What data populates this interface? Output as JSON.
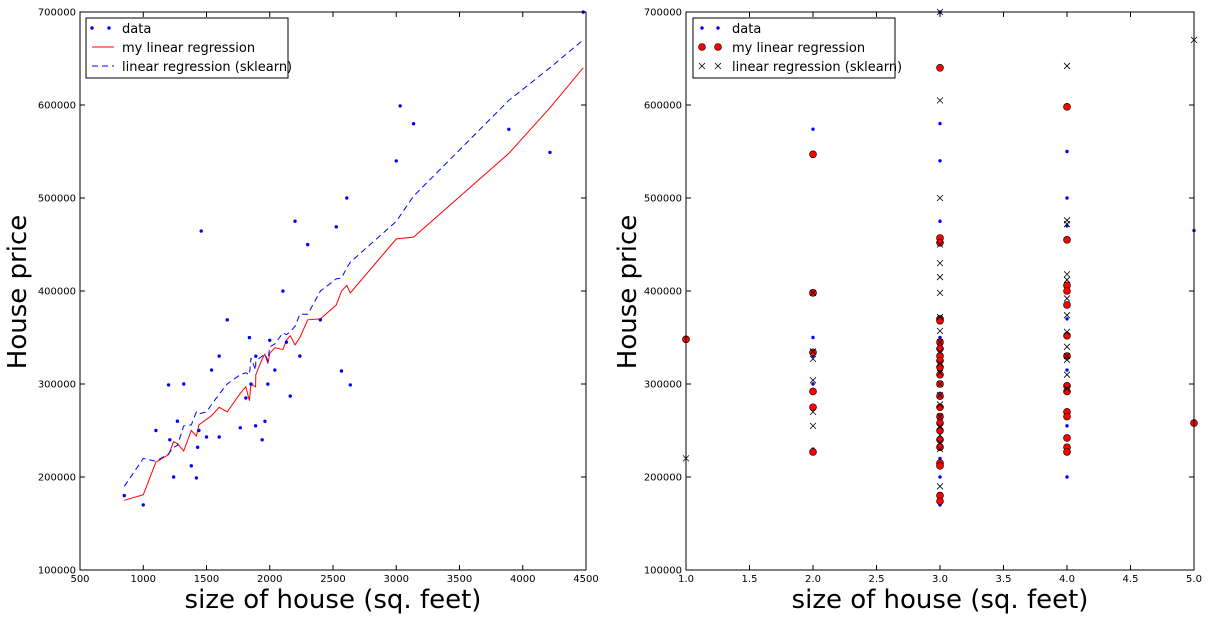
{
  "chart_data": [
    {
      "type": "scatter",
      "xlabel": "size of house (sq. feet)",
      "ylabel": "House price",
      "xlim": [
        500,
        4500
      ],
      "ylim": [
        100000,
        700000
      ],
      "xticks": [
        "500",
        "1000",
        "1500",
        "2000",
        "2500",
        "3000",
        "3500",
        "4000",
        "4500"
      ],
      "yticks": [
        "100000",
        "200000",
        "300000",
        "400000",
        "500000",
        "600000",
        "700000"
      ],
      "grid": false,
      "legend_position": "top-left",
      "series": [
        {
          "name": "data",
          "style": "points",
          "color": "#0000ff",
          "x": [
            850,
            1000,
            1100,
            1200,
            1210,
            1240,
            1270,
            1320,
            1380,
            1420,
            1430,
            1440,
            1458,
            1500,
            1540,
            1600,
            1600,
            1664,
            1767,
            1811,
            1839,
            1852,
            1888,
            1890,
            1940,
            1962,
            1985,
            2000,
            2040,
            2104,
            2132,
            2162,
            2200,
            2238,
            2300,
            2400,
            2526,
            2567,
            2609,
            2637,
            3000,
            3031,
            3137,
            3890,
            4215,
            4478
          ],
          "y": [
            180000,
            170000,
            250000,
            299000,
            240000,
            200000,
            260000,
            300000,
            212000,
            198999,
            232000,
            250000,
            464500,
            243000,
            315000,
            330000,
            243000,
            369000,
            252900,
            285000,
            349900,
            299900,
            255000,
            329900,
            240000,
            259900,
            299900,
            347000,
            315000,
            399900,
            345000,
            287000,
            475000,
            329999,
            449900,
            369000,
            469000,
            314000,
            499998,
            299000,
            539900,
            599000,
            579900,
            573900,
            549000,
            699900
          ]
        },
        {
          "name": "my linear regression",
          "style": "line",
          "color": "#ff0000",
          "x": [
            850,
            1000,
            1100,
            1200,
            1240,
            1270,
            1320,
            1380,
            1420,
            1440,
            1500,
            1540,
            1600,
            1664,
            1767,
            1811,
            1839,
            1852,
            1888,
            1890,
            1940,
            1962,
            1985,
            2000,
            2040,
            2104,
            2132,
            2162,
            2200,
            2238,
            2300,
            2400,
            2526,
            2567,
            2609,
            2637,
            3000,
            3137,
            3890,
            4215,
            4478
          ],
          "y": [
            175000,
            181000,
            216000,
            224000,
            238000,
            236000,
            228000,
            250000,
            244000,
            256000,
            262000,
            266000,
            275000,
            270000,
            290000,
            297000,
            282000,
            300000,
            297000,
            310000,
            327000,
            332000,
            322000,
            333000,
            339000,
            337000,
            347000,
            352000,
            342000,
            350000,
            369000,
            370000,
            385000,
            400000,
            406000,
            398000,
            456000,
            458000,
            548000,
            597000,
            640000
          ]
        },
        {
          "name": "linear regression (sklearn)",
          "style": "dashed-line",
          "color": "#0000ff",
          "x": [
            850,
            1000,
            1100,
            1200,
            1240,
            1270,
            1320,
            1380,
            1420,
            1440,
            1500,
            1540,
            1600,
            1664,
            1767,
            1811,
            1839,
            1852,
            1888,
            1890,
            1940,
            1962,
            1985,
            2000,
            2040,
            2104,
            2132,
            2162,
            2200,
            2238,
            2300,
            2400,
            2526,
            2567,
            2609,
            2637,
            3000,
            3137,
            3890,
            4215,
            4478
          ],
          "y": [
            190000,
            220000,
            217000,
            225000,
            232000,
            234000,
            255000,
            256000,
            270000,
            268000,
            270000,
            278000,
            289000,
            300000,
            310000,
            312000,
            310000,
            328000,
            315000,
            325000,
            330000,
            332000,
            325000,
            340000,
            343000,
            355000,
            353000,
            356000,
            362000,
            375000,
            375000,
            400000,
            413000,
            414000,
            425000,
            431000,
            475000,
            502000,
            605000,
            640000,
            670000
          ]
        }
      ]
    },
    {
      "type": "scatter",
      "xlabel": "size of house (sq. feet)",
      "ylabel": "House price",
      "xlim": [
        1.0,
        5.0
      ],
      "ylim": [
        100000,
        700000
      ],
      "xticks": [
        "1.0",
        "1.5",
        "2.0",
        "2.5",
        "3.0",
        "3.5",
        "4.0",
        "4.5",
        "5.0"
      ],
      "yticks": [
        "100000",
        "200000",
        "300000",
        "400000",
        "500000",
        "600000",
        "700000"
      ],
      "grid": false,
      "legend_position": "top-left",
      "series": [
        {
          "name": "data",
          "style": "points",
          "color": "#0000ff",
          "x": [
            1,
            2,
            2,
            2,
            2,
            2,
            2,
            2,
            3,
            3,
            3,
            3,
            3,
            3,
            3,
            3,
            3,
            3,
            3,
            3,
            3,
            3,
            3,
            3,
            3,
            3,
            3,
            3,
            3,
            3,
            3,
            3,
            3,
            3,
            4,
            4,
            4,
            4,
            4,
            4,
            4,
            4,
            4,
            4,
            4,
            4,
            4,
            5
          ],
          "y": [
            350000,
            574000,
            350000,
            330000,
            300000,
            275000,
            230000,
            545000,
            699900,
            580000,
            540000,
            475000,
            450000,
            370000,
            350000,
            340000,
            330000,
            320000,
            315000,
            300000,
            290000,
            285000,
            275000,
            265000,
            260000,
            255000,
            250000,
            240000,
            230000,
            220000,
            213000,
            200000,
            180000,
            170000,
            600000,
            550000,
            500000,
            470000,
            455000,
            400000,
            370000,
            350000,
            330000,
            315000,
            300000,
            255000,
            200000,
            465000
          ]
        },
        {
          "name": "my linear regression",
          "style": "circles",
          "color": "#ff0000",
          "x": [
            1,
            2,
            2,
            2,
            2,
            2,
            2,
            3,
            3,
            3,
            3,
            3,
            3,
            3,
            3,
            3,
            3,
            3,
            3,
            3,
            3,
            3,
            3,
            3,
            3,
            3,
            3,
            3,
            3,
            3,
            4,
            4,
            4,
            4,
            4,
            4,
            4,
            4,
            4,
            4,
            4,
            4,
            4,
            4,
            5
          ],
          "y": [
            348000,
            547000,
            398000,
            334000,
            292000,
            275000,
            227000,
            640000,
            457000,
            452000,
            370000,
            368000,
            345000,
            338000,
            330000,
            325000,
            318000,
            310000,
            300000,
            287000,
            275000,
            265000,
            258000,
            250000,
            240000,
            232000,
            215000,
            180000,
            174000,
            212000,
            598000,
            455000,
            406000,
            400000,
            385000,
            352000,
            330000,
            298000,
            292000,
            270000,
            265000,
            242000,
            232000,
            227000,
            258000
          ]
        },
        {
          "name": "linear regression (sklearn)",
          "style": "crosses",
          "color": "#000000",
          "x": [
            1,
            2,
            2,
            2,
            2,
            2,
            2,
            3,
            3,
            3,
            3,
            3,
            3,
            3,
            3,
            3,
            3,
            3,
            3,
            3,
            3,
            3,
            3,
            3,
            3,
            3,
            3,
            3,
            3,
            4,
            4,
            4,
            4,
            4,
            4,
            4,
            4,
            4,
            4,
            4,
            4,
            4,
            5
          ],
          "y": [
            220000,
            398000,
            335000,
            327000,
            304000,
            270000,
            255000,
            700000,
            605000,
            500000,
            450000,
            430000,
            415000,
            398000,
            372000,
            357000,
            345000,
            335000,
            322000,
            312000,
            300000,
            288000,
            278000,
            265000,
            254000,
            245000,
            237000,
            230000,
            190000,
            642000,
            476000,
            472000,
            418000,
            412000,
            392000,
            374000,
            356000,
            340000,
            330000,
            326000,
            310000,
            295000,
            670000
          ]
        }
      ]
    }
  ]
}
